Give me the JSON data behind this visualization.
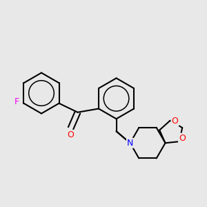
{
  "background_color": "#e8e8e8",
  "bond_color": "#000000",
  "atom_colors": {
    "F": "#ee00ee",
    "O": "#ff0000",
    "N": "#0000ff",
    "C": "#000000"
  },
  "bond_width": 1.5,
  "figsize": [
    3.0,
    3.0
  ],
  "dpi": 100,
  "xlim": [
    0.0,
    3.0
  ],
  "ylim": [
    0.6,
    2.9
  ]
}
